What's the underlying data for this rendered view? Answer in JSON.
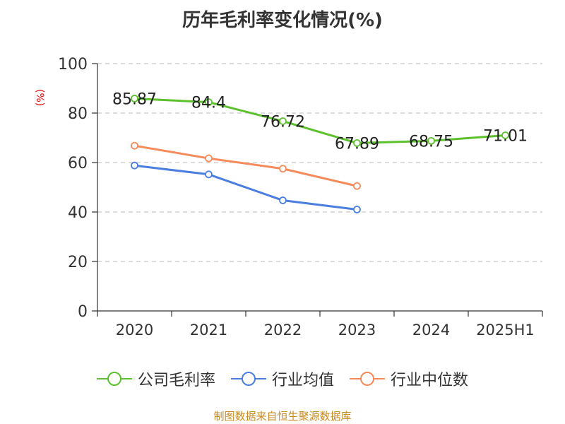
{
  "title": "历年毛利率变化情况(%)",
  "unit_label": "(%)",
  "footer": "制图数据来自恒生聚源数据库",
  "colors": {
    "company": "#5cc12c",
    "industry_avg": "#4a7fe0",
    "industry_median": "#f58b5a"
  },
  "chart_data": {
    "type": "line",
    "title": "历年毛利率变化情况(%)",
    "ylabel": "(%)",
    "ylim": [
      0,
      100
    ],
    "yticks": [
      0,
      20,
      40,
      60,
      80,
      100
    ],
    "grid": true,
    "legend_position": "bottom",
    "categories": [
      "2020",
      "2021",
      "2022",
      "2023",
      "2024",
      "2025H1"
    ],
    "series": [
      {
        "name": "公司毛利率",
        "values": [
          85.87,
          84.4,
          76.72,
          67.89,
          68.75,
          71.01
        ],
        "labels": [
          "85.87",
          "84.4",
          "76.72",
          "67.89",
          "68.75",
          "71.01"
        ]
      },
      {
        "name": "行业均值",
        "values": [
          58.8,
          55.2,
          44.7,
          41.0,
          null,
          null
        ]
      },
      {
        "name": "行业中位数",
        "values": [
          66.8,
          61.7,
          57.5,
          50.5,
          null,
          null
        ]
      }
    ]
  }
}
